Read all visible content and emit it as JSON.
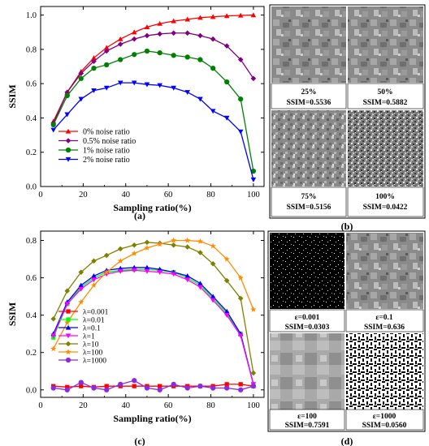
{
  "chart_data": [
    {
      "type": "line",
      "panel_label": "(a)",
      "xlabel": "Sampling ratio(%)",
      "ylabel": "SSIM",
      "xlim": [
        0,
        105
      ],
      "ylim": [
        0,
        1.05
      ],
      "xticks": [
        "0",
        "20",
        "40",
        "60",
        "80",
        "100"
      ],
      "yticks": [
        "0.0",
        "0.2",
        "0.4",
        "0.6",
        "0.8",
        "1.0"
      ],
      "legend_position": "lower-left",
      "x": [
        6,
        12.5,
        19,
        25,
        31,
        37.5,
        44,
        50,
        56,
        62.5,
        69,
        75,
        81,
        87.5,
        94,
        100
      ],
      "series": [
        {
          "name": "0% noise ratio",
          "color": "#ff0000",
          "marker": "triangle-up",
          "values": [
            0.38,
            0.55,
            0.67,
            0.75,
            0.81,
            0.86,
            0.9,
            0.93,
            0.95,
            0.965,
            0.975,
            0.985,
            0.99,
            0.995,
            0.998,
            1.0
          ]
        },
        {
          "name": "0.5% noise ratio",
          "color": "#800080",
          "marker": "diamond",
          "values": [
            0.37,
            0.55,
            0.66,
            0.73,
            0.79,
            0.83,
            0.86,
            0.88,
            0.89,
            0.895,
            0.895,
            0.88,
            0.86,
            0.82,
            0.74,
            0.63
          ]
        },
        {
          "name": "1% noise ratio",
          "color": "#008000",
          "marker": "circle",
          "values": [
            0.36,
            0.53,
            0.63,
            0.69,
            0.71,
            0.74,
            0.77,
            0.79,
            0.78,
            0.765,
            0.755,
            0.74,
            0.69,
            0.61,
            0.51,
            0.09
          ]
        },
        {
          "name": "2% noise ratio",
          "color": "#0000ff",
          "marker": "triangle-down",
          "values": [
            0.33,
            0.42,
            0.51,
            0.56,
            0.575,
            0.605,
            0.605,
            0.595,
            0.59,
            0.575,
            0.55,
            0.51,
            0.44,
            0.4,
            0.32,
            0.04
          ]
        }
      ]
    },
    {
      "type": "line",
      "panel_label": "(c)",
      "xlabel": "Sampling ratio(%)",
      "ylabel": "SSIM",
      "xlim": [
        0,
        105
      ],
      "ylim": [
        -0.04,
        0.85
      ],
      "xticks": [
        "0",
        "20",
        "40",
        "60",
        "80",
        "100"
      ],
      "yticks": [
        "0.0",
        "0.2",
        "0.4",
        "0.6",
        "0.8"
      ],
      "legend_position": "lower-left",
      "x": [
        6,
        12.5,
        19,
        25,
        31,
        37.5,
        44,
        50,
        56,
        62.5,
        69,
        75,
        81,
        87.5,
        94,
        100
      ],
      "series": [
        {
          "name": "λ=0.001",
          "color": "#ff0000",
          "marker": "square",
          "values": [
            0.02,
            0.015,
            0.02,
            0.015,
            0.02,
            0.02,
            0.02,
            0.02,
            0.02,
            0.02,
            0.02,
            0.02,
            0.02,
            0.03,
            0.03,
            0.02
          ]
        },
        {
          "name": "λ=0.01",
          "color": "#00ff00",
          "marker": "square",
          "values": [
            0.28,
            0.46,
            0.55,
            0.6,
            0.63,
            0.64,
            0.645,
            0.645,
            0.64,
            0.63,
            0.6,
            0.56,
            0.49,
            0.41,
            0.3,
            0.03
          ]
        },
        {
          "name": "λ=0.1",
          "color": "#0000ff",
          "marker": "triangle-up",
          "values": [
            0.3,
            0.47,
            0.56,
            0.61,
            0.64,
            0.65,
            0.655,
            0.655,
            0.645,
            0.63,
            0.61,
            0.57,
            0.5,
            0.42,
            0.3,
            0.03
          ]
        },
        {
          "name": "λ=1",
          "color": "#ff00ff",
          "marker": "triangle-down",
          "values": [
            0.29,
            0.46,
            0.54,
            0.59,
            0.62,
            0.635,
            0.64,
            0.635,
            0.63,
            0.62,
            0.59,
            0.55,
            0.48,
            0.4,
            0.29,
            0.03
          ]
        },
        {
          "name": "λ=10",
          "color": "#808000",
          "marker": "diamond",
          "values": [
            0.38,
            0.53,
            0.63,
            0.69,
            0.72,
            0.755,
            0.775,
            0.79,
            0.785,
            0.775,
            0.765,
            0.735,
            0.675,
            0.585,
            0.49,
            0.09
          ]
        },
        {
          "name": "λ=100",
          "color": "#ff8c00",
          "marker": "star",
          "values": [
            0.22,
            0.36,
            0.47,
            0.56,
            0.63,
            0.69,
            0.73,
            0.76,
            0.78,
            0.8,
            0.8,
            0.795,
            0.77,
            0.7,
            0.6,
            0.43
          ]
        },
        {
          "name": "λ=1000",
          "color": "#8a2be2",
          "marker": "circle",
          "values": [
            0.01,
            0.0,
            0.04,
            0.01,
            0.0,
            0.03,
            0.05,
            0.01,
            0.0,
            0.03,
            0.01,
            0.02,
            0.01,
            0.01,
            0.0,
            0.02
          ]
        }
      ]
    }
  ],
  "panel_b": {
    "label": "(b)",
    "tiles": [
      {
        "ratio": "25%",
        "ssim": "SSIM=0.5536"
      },
      {
        "ratio": "50%",
        "ssim": "SSIM=0.5882"
      },
      {
        "ratio": "75%",
        "ssim": "SSIM=0.5156"
      },
      {
        "ratio": "100%",
        "ssim": "SSIM=0.0422"
      }
    ]
  },
  "panel_d": {
    "label": "(d)",
    "tiles": [
      {
        "eps": "ε=0.001",
        "ssim": "SSIM=0.0303"
      },
      {
        "eps": "ε=0.1",
        "ssim": "SSIM=0.636"
      },
      {
        "eps": "ε=100",
        "ssim": "SSIM=0.7591"
      },
      {
        "eps": "ε=1000",
        "ssim": "SSIM=0.0560"
      }
    ]
  }
}
